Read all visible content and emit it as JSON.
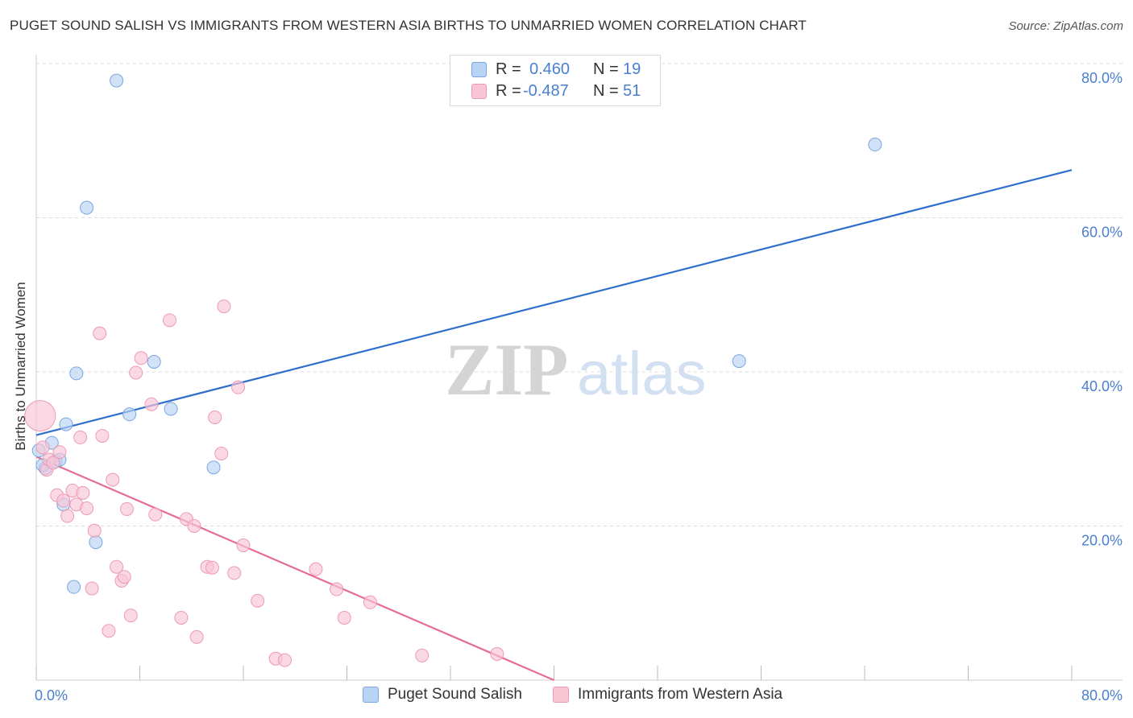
{
  "header": {
    "title": "PUGET SOUND SALISH VS IMMIGRANTS FROM WESTERN ASIA BIRTHS TO UNMARRIED WOMEN CORRELATION CHART",
    "source": "Source: ZipAtlas.com"
  },
  "watermark": {
    "zip": "ZIP",
    "atlas": "atlas"
  },
  "legend_top": {
    "rows": [
      {
        "r_label": "R =",
        "r_value": "0.460",
        "n_label": "N =",
        "n_value": "19"
      },
      {
        "r_label": "R =",
        "r_value": "-0.487",
        "n_label": "N =",
        "n_value": "51"
      }
    ]
  },
  "legend_bottom": {
    "items": [
      {
        "label": "Puget Sound Salish"
      },
      {
        "label": "Immigrants from Western Asia"
      }
    ]
  },
  "colors": {
    "blue_fill": "#b8d3f4",
    "blue_stroke": "#7aa6e0",
    "blue_line": "#2f6fcc",
    "pink_fill": "#f9c5d5",
    "pink_stroke": "#ec9ab4",
    "pink_line": "#e56c95",
    "axis_text": "#4a7fd0",
    "grid": "#dddddd"
  },
  "chart_data": {
    "type": "scatter",
    "title": "PUGET SOUND SALISH VS IMMIGRANTS FROM WESTERN ASIA BIRTHS TO UNMARRIED WOMEN CORRELATION CHART",
    "xlabel": "",
    "ylabel": "Births to Unmarried Women",
    "xlim": [
      0,
      80
    ],
    "ylim": [
      0,
      80
    ],
    "x_tick_labels": [
      "0.0%",
      "80.0%"
    ],
    "y_tick_values": [
      20,
      40,
      60,
      80
    ],
    "y_tick_labels": [
      "20.0%",
      "40.0%",
      "60.0%",
      "80.0%"
    ],
    "grid": true,
    "legend_position": "bottom",
    "series": [
      {
        "name": "Puget Sound Salish",
        "R": 0.46,
        "N": 19,
        "trend": {
          "x": [
            0,
            80
          ],
          "y": [
            31.8,
            66.2
          ]
        },
        "points": [
          {
            "x": 0.2,
            "y": 29.8
          },
          {
            "x": 0.7,
            "y": 27.5
          },
          {
            "x": 1.2,
            "y": 30.8
          },
          {
            "x": 1.5,
            "y": 28.4
          },
          {
            "x": 1.8,
            "y": 28.6
          },
          {
            "x": 2.3,
            "y": 33.2
          },
          {
            "x": 2.1,
            "y": 22.8
          },
          {
            "x": 3.1,
            "y": 39.8
          },
          {
            "x": 2.9,
            "y": 12.1
          },
          {
            "x": 4.6,
            "y": 17.9
          },
          {
            "x": 6.2,
            "y": 77.8
          },
          {
            "x": 3.9,
            "y": 61.3
          },
          {
            "x": 7.2,
            "y": 34.5
          },
          {
            "x": 9.1,
            "y": 41.3
          },
          {
            "x": 10.4,
            "y": 35.2
          },
          {
            "x": 13.7,
            "y": 27.6
          },
          {
            "x": 54.3,
            "y": 41.4
          },
          {
            "x": 64.8,
            "y": 69.5
          },
          {
            "x": 0.5,
            "y": 27.9
          }
        ]
      },
      {
        "name": "Immigrants from Western Asia",
        "R": -0.487,
        "N": 51,
        "trend": {
          "x": [
            0,
            40
          ],
          "y": [
            29.0,
            0.0
          ]
        },
        "points": [
          {
            "x": 0.3,
            "y": 34.3
          },
          {
            "x": 0.5,
            "y": 30.2
          },
          {
            "x": 0.8,
            "y": 27.3
          },
          {
            "x": 1.0,
            "y": 28.6
          },
          {
            "x": 1.3,
            "y": 28.2
          },
          {
            "x": 1.6,
            "y": 24.0
          },
          {
            "x": 1.8,
            "y": 29.6
          },
          {
            "x": 2.1,
            "y": 23.3
          },
          {
            "x": 2.4,
            "y": 21.3
          },
          {
            "x": 2.8,
            "y": 24.6
          },
          {
            "x": 3.1,
            "y": 22.8
          },
          {
            "x": 3.4,
            "y": 31.5
          },
          {
            "x": 3.6,
            "y": 24.3
          },
          {
            "x": 3.9,
            "y": 22.3
          },
          {
            "x": 4.3,
            "y": 11.9
          },
          {
            "x": 4.5,
            "y": 19.4
          },
          {
            "x": 4.9,
            "y": 45.0
          },
          {
            "x": 5.1,
            "y": 31.7
          },
          {
            "x": 5.6,
            "y": 6.4
          },
          {
            "x": 5.9,
            "y": 26.0
          },
          {
            "x": 6.2,
            "y": 14.7
          },
          {
            "x": 6.6,
            "y": 12.9
          },
          {
            "x": 6.8,
            "y": 13.4
          },
          {
            "x": 7.0,
            "y": 22.2
          },
          {
            "x": 7.3,
            "y": 8.4
          },
          {
            "x": 7.7,
            "y": 39.9
          },
          {
            "x": 8.1,
            "y": 41.8
          },
          {
            "x": 8.9,
            "y": 35.8
          },
          {
            "x": 9.2,
            "y": 21.5
          },
          {
            "x": 10.3,
            "y": 46.7
          },
          {
            "x": 11.2,
            "y": 8.1
          },
          {
            "x": 11.6,
            "y": 20.9
          },
          {
            "x": 12.2,
            "y": 20.0
          },
          {
            "x": 12.4,
            "y": 5.6
          },
          {
            "x": 13.2,
            "y": 14.7
          },
          {
            "x": 13.6,
            "y": 14.6
          },
          {
            "x": 13.8,
            "y": 34.1
          },
          {
            "x": 14.3,
            "y": 29.4
          },
          {
            "x": 14.5,
            "y": 48.5
          },
          {
            "x": 15.3,
            "y": 13.9
          },
          {
            "x": 15.6,
            "y": 38.0
          },
          {
            "x": 16.0,
            "y": 17.5
          },
          {
            "x": 17.1,
            "y": 10.3
          },
          {
            "x": 18.5,
            "y": 2.8
          },
          {
            "x": 19.2,
            "y": 2.6
          },
          {
            "x": 21.6,
            "y": 14.4
          },
          {
            "x": 23.2,
            "y": 11.8
          },
          {
            "x": 23.8,
            "y": 8.1
          },
          {
            "x": 25.8,
            "y": 10.1
          },
          {
            "x": 29.8,
            "y": 3.2
          },
          {
            "x": 35.6,
            "y": 3.4
          }
        ]
      }
    ]
  }
}
